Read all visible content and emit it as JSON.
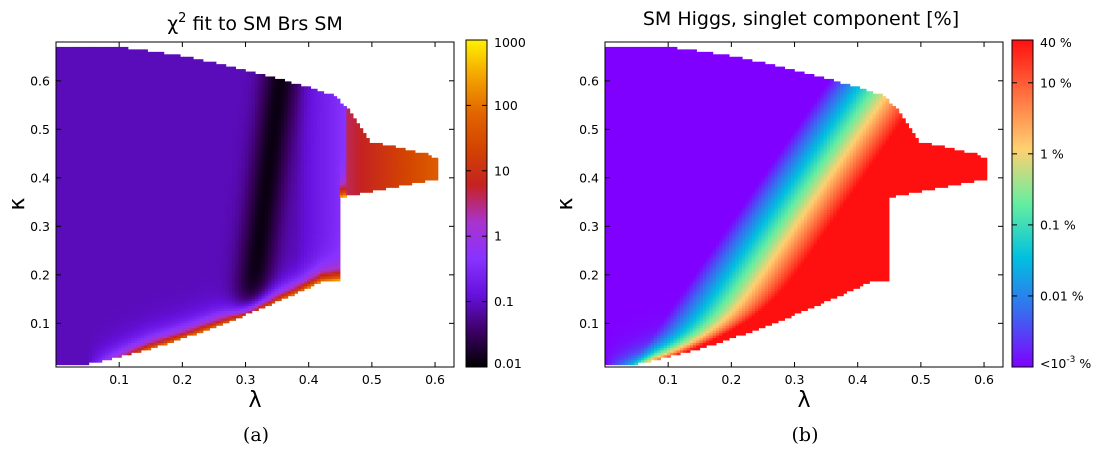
{
  "chart_data": [
    {
      "type": "heatmap",
      "title": "χ² fit to SM Brs SM",
      "title_parts": {
        "chi": "χ",
        "sup": "2",
        "rest": " fit to SM Brs SM"
      },
      "xlabel": "λ",
      "ylabel": "κ",
      "xlim": [
        0.0,
        0.63
      ],
      "ylim": [
        0.01,
        0.68
      ],
      "xticks": [
        0.1,
        0.2,
        0.3,
        0.4,
        0.5,
        0.6
      ],
      "xtick_labels": [
        "0.1",
        "0.2",
        "0.3",
        "0.4",
        "0.5",
        "0.6"
      ],
      "yticks": [
        0.1,
        0.2,
        0.3,
        0.4,
        0.5,
        0.6
      ],
      "ytick_labels": [
        "0.1",
        "0.2",
        "0.3",
        "0.4",
        "0.5",
        "0.6"
      ],
      "colorbar": {
        "scale": "log",
        "range": [
          0.01,
          1000
        ],
        "ticks": [
          0.01,
          0.1,
          1,
          10,
          100,
          1000
        ],
        "tick_labels": [
          "0.01",
          "0.1",
          "1",
          "10",
          "100",
          "1000"
        ],
        "colormap": "purple-black-red-orange-yellow",
        "stops": [
          "#000000",
          "#3d0066",
          "#6611dd",
          "#8833ff",
          "#aa33cc",
          "#c52222",
          "#d34400",
          "#e26600",
          "#f4a400",
          "#fff000"
        ]
      },
      "caption": "(a)"
    },
    {
      "type": "heatmap",
      "title": "SM Higgs, singlet component [%]",
      "xlabel": "λ",
      "ylabel": "κ",
      "xlim": [
        0.0,
        0.63
      ],
      "ylim": [
        0.01,
        0.68
      ],
      "xticks": [
        0.1,
        0.2,
        0.3,
        0.4,
        0.5,
        0.6
      ],
      "xtick_labels": [
        "0.1",
        "0.2",
        "0.3",
        "0.4",
        "0.5",
        "0.6"
      ],
      "yticks": [
        0.1,
        0.2,
        0.3,
        0.4,
        0.5,
        0.6
      ],
      "ytick_labels": [
        "0.1",
        "0.2",
        "0.3",
        "0.4",
        "0.5",
        "0.6"
      ],
      "colorbar": {
        "scale": "log",
        "range": [
          0.001,
          40
        ],
        "ticks": [
          0.001,
          0.01,
          0.1,
          1,
          10,
          40
        ],
        "tick_labels": [
          "<10",
          "0.01 %",
          "0.1 %",
          "1 %",
          "10 %",
          "40 %"
        ],
        "lowest_label_parts": {
          "base": "<10",
          "sup": "-3",
          "unit": " %"
        },
        "colormap": "rainbow",
        "stops": [
          "#8000ff",
          "#3a6af0",
          "#00c0e0",
          "#66eea0",
          "#ffd070",
          "#ff7040",
          "#ff1010"
        ]
      },
      "caption": "(b)"
    }
  ]
}
